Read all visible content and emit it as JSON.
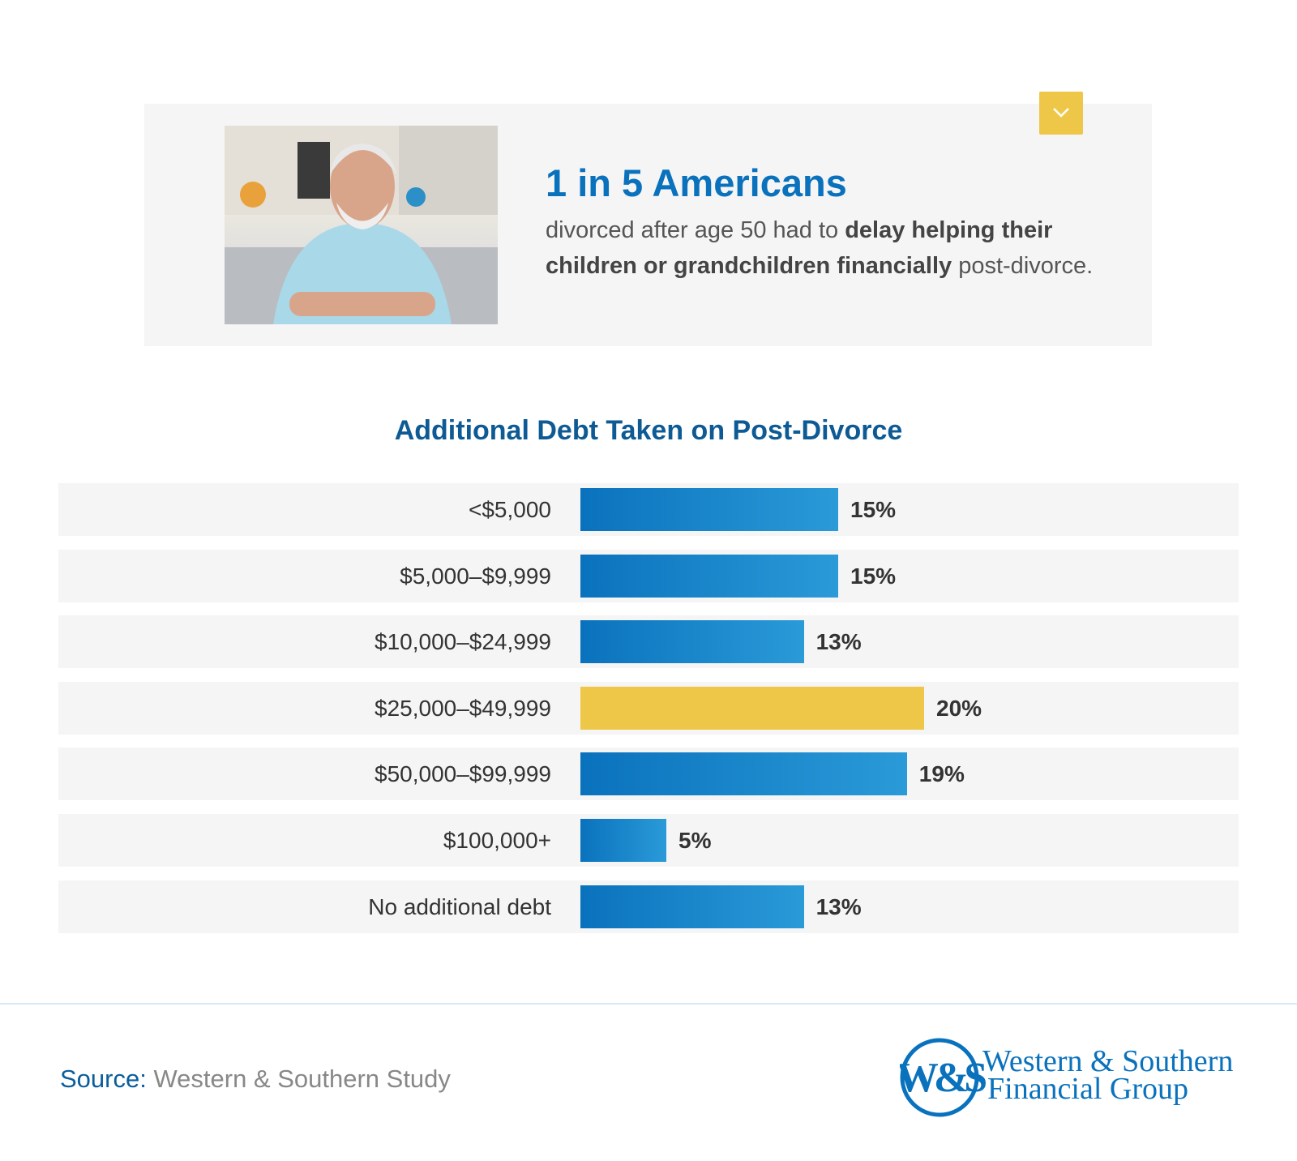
{
  "highlight": {
    "stat": "1 in 5 Americans",
    "desc_pre": "divorced after age 50 had to ",
    "desc_bold": "delay helping their children or grandchildren financially",
    "desc_post": " post-divorce.",
    "toggle_icon": "chevron-down-icon"
  },
  "chart_data": {
    "type": "bar",
    "orientation": "horizontal",
    "title": "Additional Debt Taken on Post-Divorce",
    "categories": [
      "<$5,000",
      "$5,000–$9,999",
      "$10,000–$24,999",
      "$25,000–$49,999",
      "$50,000–$99,999",
      "$100,000+",
      "No additional debt"
    ],
    "values": [
      15,
      15,
      13,
      20,
      19,
      5,
      13
    ],
    "value_labels": [
      "15%",
      "15%",
      "13%",
      "20%",
      "19%",
      "5%",
      "13%"
    ],
    "unit": "%",
    "highlight_index": 3,
    "colors": {
      "bar": "#0a72bd",
      "bar_light": "#2a9ad8",
      "highlight": "#efc748",
      "row_bg": "#f5f5f5"
    }
  },
  "footer": {
    "source_label": "Source:",
    "source_text": " Western & Southern Study",
    "logo_line1": "Western & Southern",
    "logo_line2": "Financial Group",
    "logo_mark": "W&S"
  }
}
